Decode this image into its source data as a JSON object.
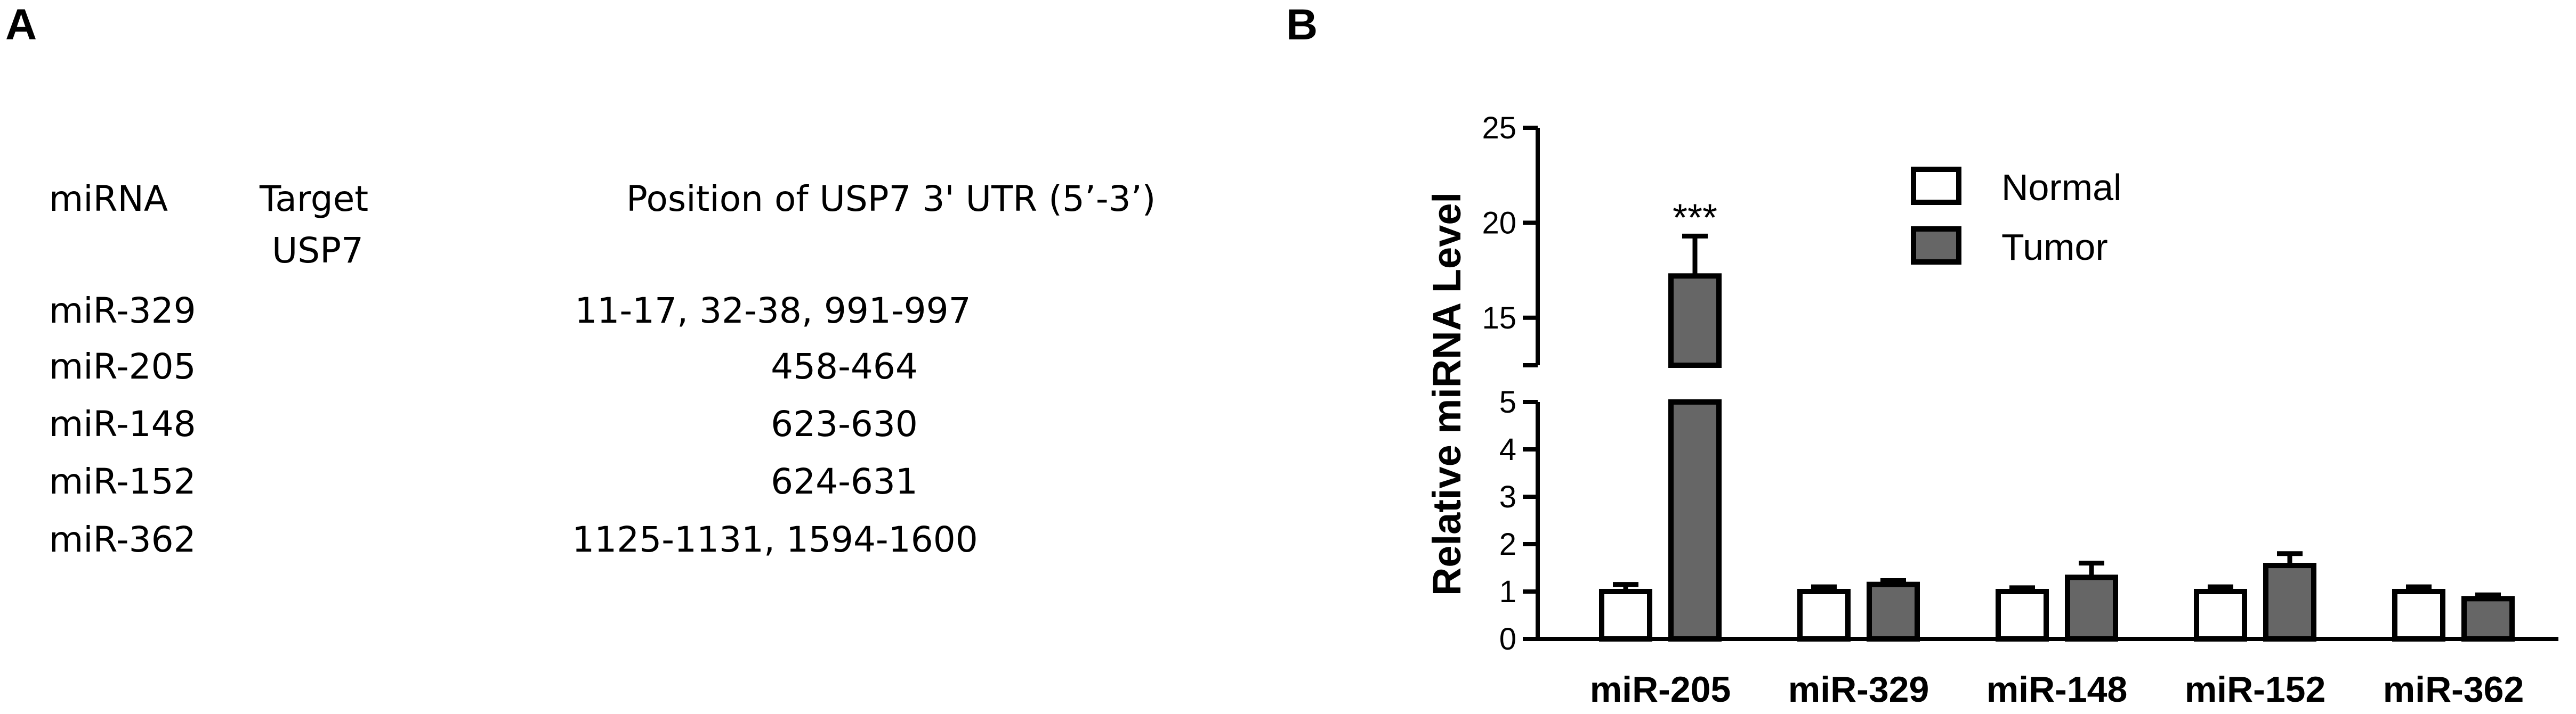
{
  "panels": {
    "a": "A",
    "b": "B"
  },
  "table": {
    "headers": {
      "mirna": "miRNA",
      "target_line1": "Target",
      "target_line2": "USP7",
      "position": "Position of USP7 3' UTR (5’-3’)"
    },
    "rows": [
      {
        "mirna": "miR-329",
        "position": "11-17, 32-38, 991-997"
      },
      {
        "mirna": "miR-205",
        "position": "458-464"
      },
      {
        "mirna": "miR-148",
        "position": "623-630"
      },
      {
        "mirna": "miR-152",
        "position": "624-631"
      },
      {
        "mirna": "miR-362",
        "position": "1125-1131, 1594-1600"
      }
    ]
  },
  "chart_data": {
    "type": "bar",
    "ylabel": "Relative miRNA Level",
    "categories": [
      "miR-205",
      "miR-329",
      "miR-148",
      "miR-152",
      "miR-362"
    ],
    "series": [
      {
        "name": "Normal",
        "color": "#ffffff",
        "values": [
          1.0,
          1.0,
          1.0,
          1.0,
          1.0
        ],
        "errors": [
          0.15,
          0.1,
          0.08,
          0.1,
          0.1
        ]
      },
      {
        "name": "Tumor",
        "color": "#666666",
        "values": [
          17.2,
          1.15,
          1.3,
          1.55,
          0.85
        ],
        "errors": [
          2.1,
          0.08,
          0.3,
          0.25,
          0.08
        ]
      }
    ],
    "y_axis_broken": true,
    "y_lower": {
      "range": [
        0,
        5
      ],
      "ticks": [
        "0",
        "1",
        "2",
        "3",
        "4",
        "5"
      ]
    },
    "y_upper": {
      "range": [
        12.5,
        25
      ],
      "ticks": [
        "15",
        "20",
        "25"
      ]
    },
    "annotations": [
      {
        "category": "miR-205",
        "series": "Tumor",
        "text": "***"
      }
    ],
    "legend_placement": "top-center"
  }
}
